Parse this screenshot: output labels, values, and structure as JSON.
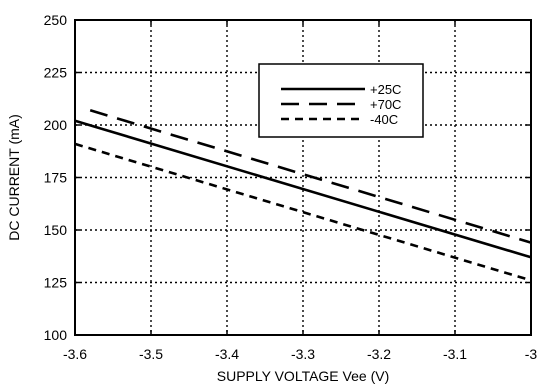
{
  "chart_data": {
    "type": "line",
    "title": "",
    "xlabel": "SUPPLY VOLTAGE Vee (V)",
    "ylabel": "DC CURRENT (mA)",
    "xlim": [
      -3.6,
      -3.0
    ],
    "ylim": [
      100,
      250
    ],
    "x_ticks": [
      -3.6,
      -3.5,
      -3.4,
      -3.3,
      -3.2,
      -3.1,
      -3.0
    ],
    "x_tick_labels": [
      "-3.6",
      "-3.5",
      "-3.4",
      "-3.3",
      "-3.2",
      "-3.1",
      "-3"
    ],
    "y_ticks": [
      100,
      125,
      150,
      175,
      200,
      225,
      250
    ],
    "y_tick_labels": [
      "100",
      "125",
      "150",
      "175",
      "200",
      "225",
      "250"
    ],
    "grid": true,
    "grid_style": "dotted",
    "legend_position": "top-right",
    "series": [
      {
        "name": "+25C",
        "style": "solid",
        "x": [
          -3.6,
          -3.0
        ],
        "y": [
          202,
          137
        ]
      },
      {
        "name": "+70C",
        "style": "dashed",
        "x": [
          -3.58,
          -3.0
        ],
        "y": [
          207,
          144
        ]
      },
      {
        "name": "-40C",
        "style": "dotted",
        "x": [
          -3.6,
          -3.0
        ],
        "y": [
          191,
          126
        ]
      }
    ]
  }
}
